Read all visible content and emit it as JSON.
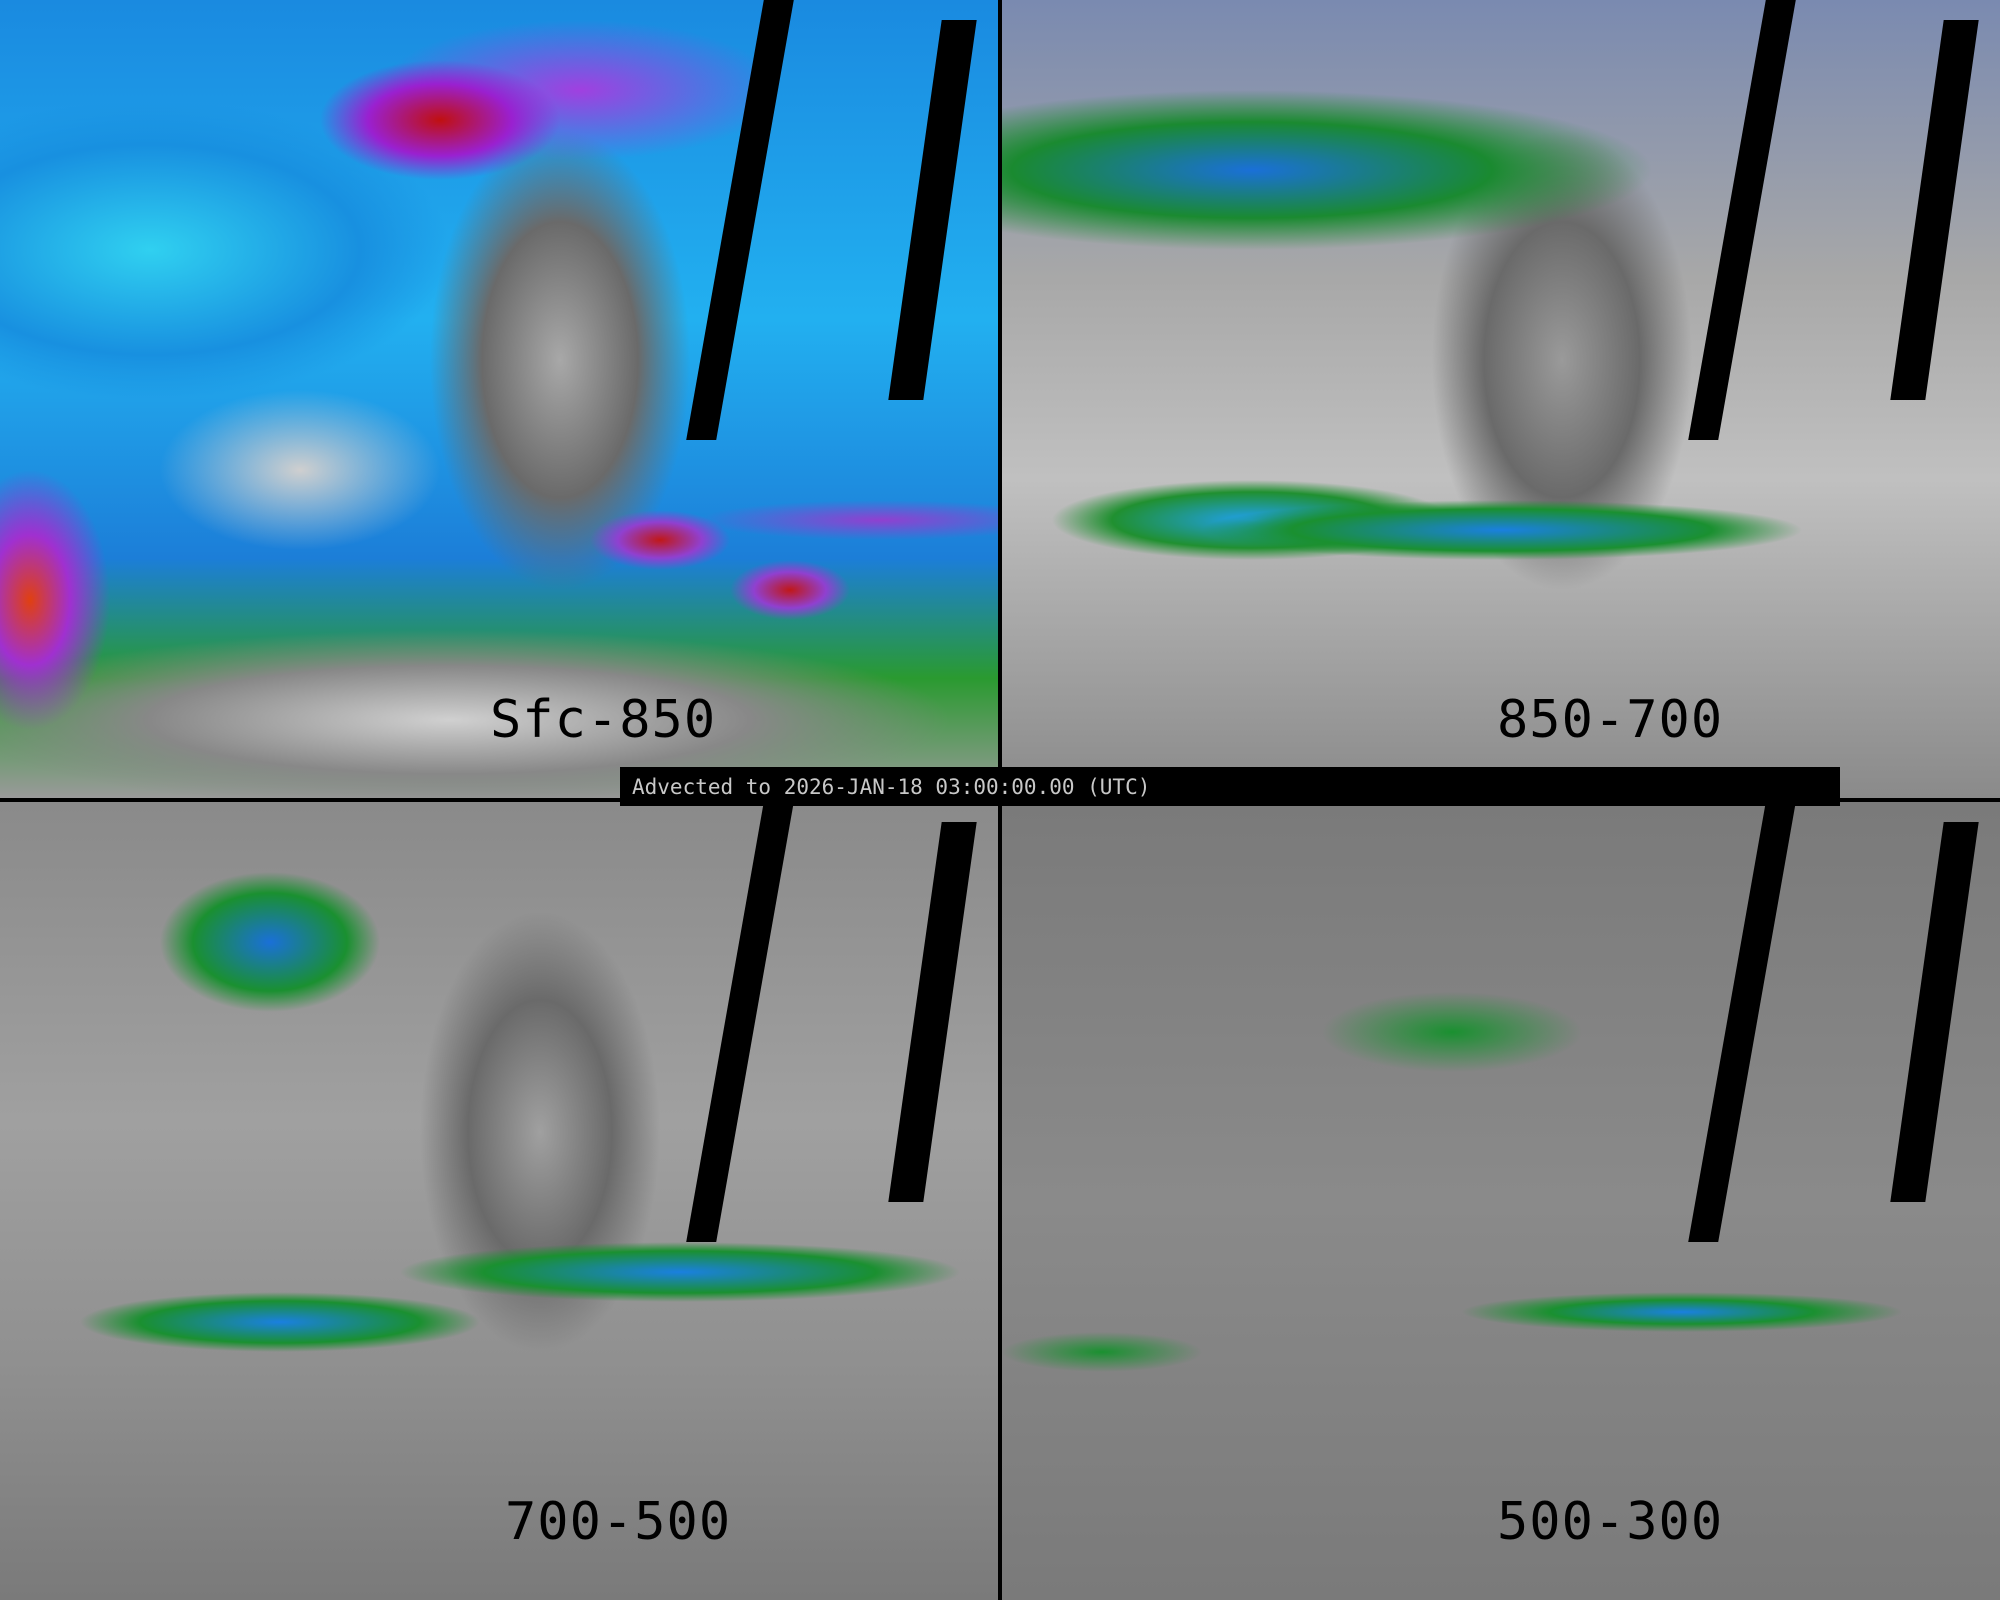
{
  "panels": [
    {
      "label": "Sfc-850"
    },
    {
      "label": "850-700"
    },
    {
      "label": "700-500"
    },
    {
      "label": "500-300"
    }
  ],
  "banner": {
    "text": "Advected to 2026-JAN-18 03:00:00.00 (UTC)"
  }
}
